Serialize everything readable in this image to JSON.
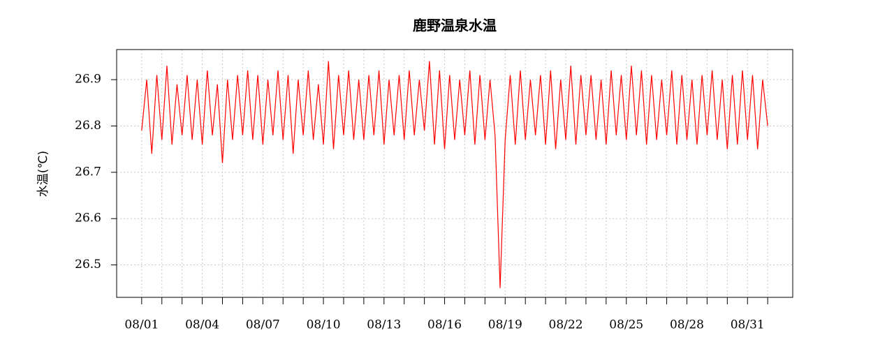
{
  "chart_data": {
    "type": "line",
    "title": "鹿野温泉水温",
    "y_label": "水温(℃)",
    "x": [
      1,
      1.25,
      1.5,
      1.75,
      2,
      2.25,
      2.5,
      2.75,
      3,
      3.25,
      3.5,
      3.75,
      4,
      4.25,
      4.5,
      4.75,
      5,
      5.25,
      5.5,
      5.75,
      6,
      6.25,
      6.5,
      6.75,
      7,
      7.25,
      7.5,
      7.75,
      8,
      8.25,
      8.5,
      8.75,
      9,
      9.25,
      9.5,
      9.75,
      10,
      10.25,
      10.5,
      10.75,
      11,
      11.25,
      11.5,
      11.75,
      12,
      12.25,
      12.5,
      12.75,
      13,
      13.25,
      13.5,
      13.75,
      14,
      14.25,
      14.5,
      14.75,
      15,
      15.25,
      15.5,
      15.75,
      16,
      16.25,
      16.5,
      16.75,
      17,
      17.25,
      17.5,
      17.75,
      18,
      18.25,
      18.5,
      18.75,
      19,
      19.25,
      19.5,
      19.75,
      20,
      20.25,
      20.5,
      20.75,
      21,
      21.25,
      21.5,
      21.75,
      22,
      22.25,
      22.5,
      22.75,
      23,
      23.25,
      23.5,
      23.75,
      24,
      24.25,
      24.5,
      24.75,
      25,
      25.25,
      25.5,
      25.75,
      26,
      26.25,
      26.5,
      26.75,
      27,
      27.25,
      27.5,
      27.75,
      28,
      28.25,
      28.5,
      28.75,
      29,
      29.25,
      29.5,
      29.75,
      30,
      30.25,
      30.5,
      30.75,
      31,
      31.25,
      31.5,
      31.75,
      32
    ],
    "series": [
      {
        "color": "#ff0000",
        "values": [
          26.79,
          26.9,
          26.74,
          26.91,
          26.77,
          26.93,
          26.76,
          26.89,
          26.78,
          26.91,
          26.77,
          26.9,
          26.76,
          26.92,
          26.78,
          26.89,
          26.72,
          26.9,
          26.77,
          26.91,
          26.78,
          26.92,
          26.77,
          26.91,
          26.76,
          26.9,
          26.78,
          26.92,
          26.77,
          26.91,
          26.74,
          26.9,
          26.78,
          26.92,
          26.77,
          26.89,
          26.76,
          26.94,
          26.75,
          26.91,
          26.78,
          26.92,
          26.77,
          26.9,
          26.77,
          26.91,
          26.78,
          26.92,
          26.76,
          26.9,
          26.78,
          26.91,
          26.77,
          26.92,
          26.78,
          26.9,
          26.79,
          26.94,
          26.76,
          26.92,
          26.75,
          26.91,
          26.77,
          26.9,
          26.78,
          26.92,
          26.76,
          26.91,
          26.77,
          26.9,
          26.78,
          26.45,
          26.77,
          26.91,
          26.76,
          26.92,
          26.77,
          26.9,
          26.78,
          26.91,
          26.76,
          26.92,
          26.75,
          26.9,
          26.77,
          26.93,
          26.76,
          26.91,
          26.78,
          26.91,
          26.77,
          26.9,
          26.76,
          26.92,
          26.78,
          26.91,
          26.77,
          26.93,
          26.78,
          26.92,
          26.76,
          26.91,
          26.77,
          26.9,
          26.78,
          26.92,
          26.76,
          26.91,
          26.77,
          26.9,
          26.76,
          26.91,
          26.78,
          26.92,
          26.77,
          26.9,
          26.75,
          26.91,
          26.76,
          26.92,
          26.77,
          26.91,
          26.75,
          26.9,
          26.8
        ]
      }
    ],
    "xlim": [
      -0.24,
      33.24
    ],
    "xticks": [
      {
        "value": 1,
        "label": "08/01"
      },
      {
        "value": 4,
        "label": "08/04"
      },
      {
        "value": 7,
        "label": "08/07"
      },
      {
        "value": 10,
        "label": "08/10"
      },
      {
        "value": 13,
        "label": "08/13"
      },
      {
        "value": 16,
        "label": "08/16"
      },
      {
        "value": 19,
        "label": "08/19"
      },
      {
        "value": 22,
        "label": "08/22"
      },
      {
        "value": 25,
        "label": "08/25"
      },
      {
        "value": 28,
        "label": "08/28"
      },
      {
        "value": 31,
        "label": "08/31"
      }
    ],
    "xminor_ticks": [
      2,
      3,
      5,
      6,
      8,
      9,
      11,
      12,
      14,
      15,
      17,
      18,
      20,
      21,
      23,
      24,
      26,
      27,
      29,
      30,
      32
    ],
    "ylim": [
      26.43,
      26.965
    ],
    "yticks": [
      26.5,
      26.6,
      26.7,
      26.8,
      26.9
    ],
    "grid": true
  }
}
